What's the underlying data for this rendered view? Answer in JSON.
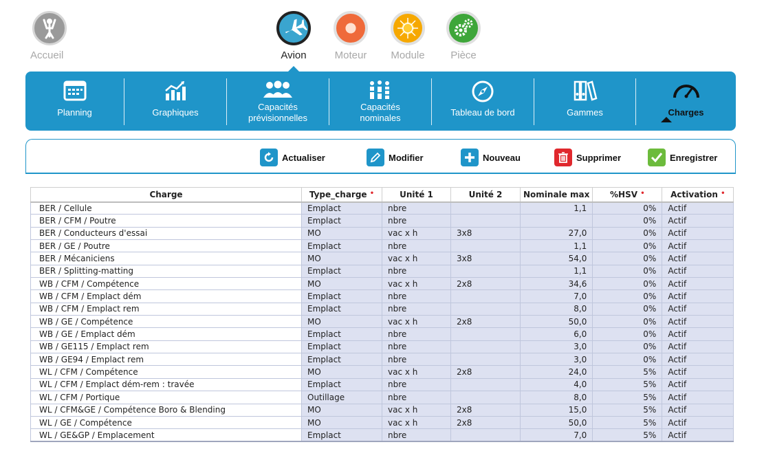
{
  "modules": {
    "home": "Accueil",
    "avion": "Avion",
    "moteur": "Moteur",
    "module": "Module",
    "piece": "Pièce"
  },
  "tabs": {
    "planning": "Planning",
    "graphiques": "Graphiques",
    "cap_prev_1": "Capacités",
    "cap_prev_2": "prévisionnelles",
    "cap_nom_1": "Capacités",
    "cap_nom_2": "nominales",
    "tableau": "Tableau de bord",
    "gammes": "Gammes",
    "charges": "Charges"
  },
  "toolbar": {
    "actualiser": "Actualiser",
    "modifier": "Modifier",
    "nouveau": "Nouveau",
    "supprimer": "Supprimer",
    "enregistrer": "Enregistrer"
  },
  "colors": {
    "accent": "#1f95c9",
    "required_marker": "#e0282d",
    "row_fill": "#dde1f1"
  },
  "table": {
    "headers": {
      "charge": "Charge",
      "type_charge": "Type_charge",
      "unite1": "Unité 1",
      "unite2": "Unité 2",
      "nominale_max": "Nominale max",
      "hsv": "%HSV",
      "activation": "Activation"
    },
    "required_mark": "•",
    "rows": [
      {
        "charge": "BER / Cellule",
        "type": "Emplact",
        "u1": "nbre",
        "u2": "",
        "nom": "1,1",
        "hsv": "0%",
        "act": "Actif"
      },
      {
        "charge": "BER / CFM / Poutre",
        "type": "Emplact",
        "u1": "nbre",
        "u2": "",
        "nom": "",
        "hsv": "0%",
        "act": "Actif"
      },
      {
        "charge": "BER / Conducteurs d'essai",
        "type": "MO",
        "u1": "vac x h",
        "u2": "3x8",
        "nom": "27,0",
        "hsv": "0%",
        "act": "Actif"
      },
      {
        "charge": "BER / GE / Poutre",
        "type": "Emplact",
        "u1": "nbre",
        "u2": "",
        "nom": "1,1",
        "hsv": "0%",
        "act": "Actif"
      },
      {
        "charge": "BER / Mécaniciens",
        "type": "MO",
        "u1": "vac x h",
        "u2": "3x8",
        "nom": "54,0",
        "hsv": "0%",
        "act": "Actif"
      },
      {
        "charge": "BER / Splitting-matting",
        "type": "Emplact",
        "u1": "nbre",
        "u2": "",
        "nom": "1,1",
        "hsv": "0%",
        "act": "Actif"
      },
      {
        "charge": "WB / CFM / Compétence",
        "type": "MO",
        "u1": "vac x h",
        "u2": "2x8",
        "nom": "34,6",
        "hsv": "0%",
        "act": "Actif"
      },
      {
        "charge": "WB / CFM / Emplact dém",
        "type": "Emplact",
        "u1": "nbre",
        "u2": "",
        "nom": "7,0",
        "hsv": "0%",
        "act": "Actif"
      },
      {
        "charge": "WB / CFM / Emplact rem",
        "type": "Emplact",
        "u1": "nbre",
        "u2": "",
        "nom": "8,0",
        "hsv": "0%",
        "act": "Actif"
      },
      {
        "charge": "WB / GE / Compétence",
        "type": "MO",
        "u1": "vac x h",
        "u2": "2x8",
        "nom": "50,0",
        "hsv": "0%",
        "act": "Actif"
      },
      {
        "charge": "WB / GE / Emplact dém",
        "type": "Emplact",
        "u1": "nbre",
        "u2": "",
        "nom": "6,0",
        "hsv": "0%",
        "act": "Actif"
      },
      {
        "charge": "WB / GE115 / Emplact rem",
        "type": "Emplact",
        "u1": "nbre",
        "u2": "",
        "nom": "3,0",
        "hsv": "0%",
        "act": "Actif"
      },
      {
        "charge": "WB / GE94 / Emplact rem",
        "type": "Emplact",
        "u1": "nbre",
        "u2": "",
        "nom": "3,0",
        "hsv": "0%",
        "act": "Actif"
      },
      {
        "charge": "WL / CFM / Compétence",
        "type": "MO",
        "u1": "vac x h",
        "u2": "2x8",
        "nom": "24,0",
        "hsv": "5%",
        "act": "Actif"
      },
      {
        "charge": "WL / CFM / Emplact dém-rem : travée",
        "type": "Emplact",
        "u1": "nbre",
        "u2": "",
        "nom": "4,0",
        "hsv": "5%",
        "act": "Actif"
      },
      {
        "charge": "WL / CFM / Portique",
        "type": "Outillage",
        "u1": "nbre",
        "u2": "",
        "nom": "8,0",
        "hsv": "5%",
        "act": "Actif"
      },
      {
        "charge": "WL / CFM&GE / Compétence Boro & Blending",
        "type": "MO",
        "u1": "vac x h",
        "u2": "2x8",
        "nom": "15,0",
        "hsv": "5%",
        "act": "Actif"
      },
      {
        "charge": "WL / GE / Compétence",
        "type": "MO",
        "u1": "vac x h",
        "u2": "2x8",
        "nom": "50,0",
        "hsv": "5%",
        "act": "Actif"
      },
      {
        "charge": "WL / GE&GP / Emplacement",
        "type": "Emplact",
        "u1": "nbre",
        "u2": "",
        "nom": "7,0",
        "hsv": "5%",
        "act": "Actif"
      }
    ]
  }
}
